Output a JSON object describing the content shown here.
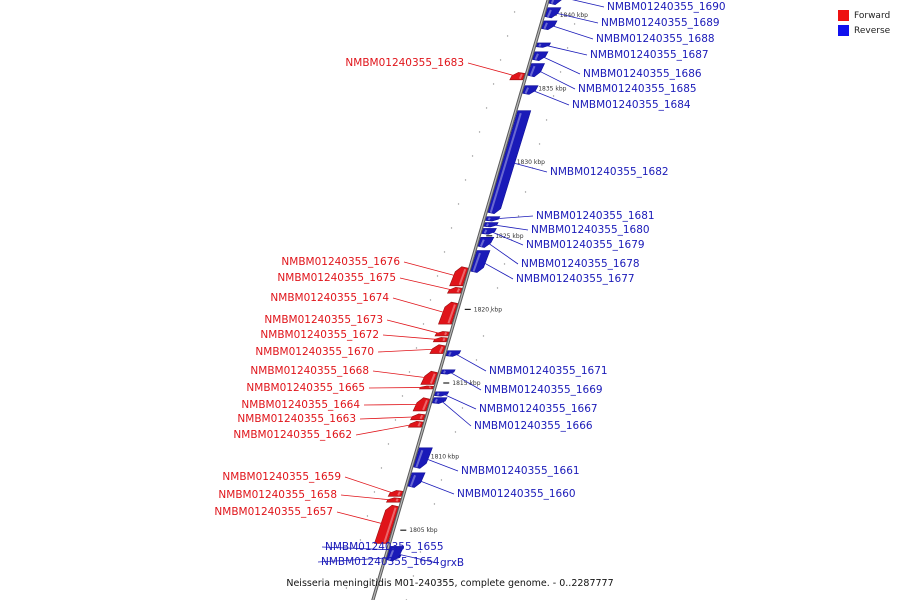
{
  "legend": [
    {
      "label": "Forward",
      "color": "#ee1111"
    },
    {
      "label": "Reverse",
      "color": "#1111ee"
    }
  ],
  "footer": {
    "caption": "Neisseria meningitidis M01-240355, complete genome. - 0..2287777"
  },
  "colors": {
    "forward": "#e0141a",
    "reverse": "#1a1ab8",
    "backbone": "#8c8c8c"
  },
  "genome": {
    "visible_kbp_range": [
      1802,
      1842
    ]
  },
  "ticks": [
    {
      "kbp": 1840,
      "label": "1840 kbp"
    },
    {
      "kbp": 1835,
      "label": "1835 kbp"
    },
    {
      "kbp": 1830,
      "label": "1830 kbp"
    },
    {
      "kbp": 1825,
      "label": "1825 kbp"
    },
    {
      "kbp": 1820,
      "label": "1820 kbp"
    },
    {
      "kbp": 1815,
      "label": "1815 kbp"
    },
    {
      "kbp": 1810,
      "label": "1810 kbp"
    },
    {
      "kbp": 1805,
      "label": "1805 kbp"
    }
  ],
  "genes": [
    {
      "name": "NMBM01240355_1690",
      "strand": "reverse",
      "start_kbp": 1840.7,
      "end_kbp": 1841.8
    },
    {
      "name": "NMBM01240355_1689",
      "strand": "reverse",
      "start_kbp": 1839.8,
      "end_kbp": 1840.5
    },
    {
      "name": "NMBM01240355_1688",
      "strand": "reverse",
      "start_kbp": 1839.0,
      "end_kbp": 1839.6
    },
    {
      "name": "NMBM01240355_1687",
      "strand": "reverse",
      "start_kbp": 1837.8,
      "end_kbp": 1838.1
    },
    {
      "name": "NMBM01240355_1686",
      "strand": "reverse",
      "start_kbp": 1836.9,
      "end_kbp": 1837.5
    },
    {
      "name": "NMBM01240355_1685",
      "strand": "reverse",
      "start_kbp": 1835.8,
      "end_kbp": 1836.7
    },
    {
      "name": "NMBM01240355_1684",
      "strand": "reverse",
      "start_kbp": 1834.6,
      "end_kbp": 1835.2
    },
    {
      "name": "NMBM01240355_1683",
      "strand": "forward",
      "start_kbp": 1835.6,
      "end_kbp": 1836.1
    },
    {
      "name": "NMBM01240355_1682",
      "strand": "reverse",
      "start_kbp": 1826.5,
      "end_kbp": 1833.5
    },
    {
      "name": "NMBM01240355_1681",
      "strand": "reverse",
      "start_kbp": 1826.0,
      "end_kbp": 1826.3
    },
    {
      "name": "NMBM01240355_1680",
      "strand": "reverse",
      "start_kbp": 1825.6,
      "end_kbp": 1825.9
    },
    {
      "name": "NMBM01240355_1679",
      "strand": "reverse",
      "start_kbp": 1825.1,
      "end_kbp": 1825.5
    },
    {
      "name": "NMBM01240355_1678",
      "strand": "reverse",
      "start_kbp": 1824.2,
      "end_kbp": 1824.9
    },
    {
      "name": "NMBM01240355_1677",
      "strand": "reverse",
      "start_kbp": 1822.5,
      "end_kbp": 1824.0
    },
    {
      "name": "NMBM01240355_1676",
      "strand": "forward",
      "start_kbp": 1821.6,
      "end_kbp": 1822.9
    },
    {
      "name": "NMBM01240355_1675",
      "strand": "forward",
      "start_kbp": 1821.1,
      "end_kbp": 1821.5
    },
    {
      "name": "NMBM01240355_1674",
      "strand": "forward",
      "start_kbp": 1819.0,
      "end_kbp": 1820.5
    },
    {
      "name": "NMBM01240355_1673",
      "strand": "forward",
      "start_kbp": 1818.2,
      "end_kbp": 1818.5
    },
    {
      "name": "NMBM01240355_1672",
      "strand": "forward",
      "start_kbp": 1817.8,
      "end_kbp": 1818.1
    },
    {
      "name": "NMBM01240355_1670",
      "strand": "forward",
      "start_kbp": 1817.0,
      "end_kbp": 1817.6
    },
    {
      "name": "NMBM01240355_1671",
      "strand": "reverse",
      "start_kbp": 1816.8,
      "end_kbp": 1817.2
    },
    {
      "name": "NMBM01240355_1669",
      "strand": "reverse",
      "start_kbp": 1815.6,
      "end_kbp": 1815.9
    },
    {
      "name": "NMBM01240355_1668",
      "strand": "forward",
      "start_kbp": 1814.9,
      "end_kbp": 1815.8
    },
    {
      "name": "NMBM01240355_1665",
      "strand": "forward",
      "start_kbp": 1814.6,
      "end_kbp": 1814.8
    },
    {
      "name": "NMBM01240355_1667",
      "strand": "reverse",
      "start_kbp": 1814.1,
      "end_kbp": 1814.4
    },
    {
      "name": "NMBM01240355_1666",
      "strand": "reverse",
      "start_kbp": 1813.6,
      "end_kbp": 1814.0
    },
    {
      "name": "NMBM01240355_1664",
      "strand": "forward",
      "start_kbp": 1813.1,
      "end_kbp": 1814.0
    },
    {
      "name": "NMBM01240355_1663",
      "strand": "forward",
      "start_kbp": 1812.5,
      "end_kbp": 1812.9
    },
    {
      "name": "NMBM01240355_1662",
      "strand": "forward",
      "start_kbp": 1812.0,
      "end_kbp": 1812.4
    },
    {
      "name": "NMBM01240355_1661",
      "strand": "reverse",
      "start_kbp": 1809.2,
      "end_kbp": 1810.6
    },
    {
      "name": "NMBM01240355_1660",
      "strand": "reverse",
      "start_kbp": 1807.9,
      "end_kbp": 1808.9
    },
    {
      "name": "NMBM01240355_1659",
      "strand": "forward",
      "start_kbp": 1807.3,
      "end_kbp": 1807.7
    },
    {
      "name": "NMBM01240355_1658",
      "strand": "forward",
      "start_kbp": 1806.9,
      "end_kbp": 1807.2
    },
    {
      "name": "NMBM01240355_1657",
      "strand": "forward",
      "start_kbp": 1804.1,
      "end_kbp": 1806.7
    },
    {
      "name": "NMBM01240355_1655",
      "strand": "reverse",
      "start_kbp": 1803.5,
      "end_kbp": 1803.8
    },
    {
      "name": "NMBM01240355_1654",
      "strand": "reverse",
      "start_kbp": 1803.0,
      "end_kbp": 1803.3
    },
    {
      "name": "grxB",
      "strand": "reverse",
      "start_kbp": 1802.9,
      "end_kbp": 1803.9
    }
  ]
}
